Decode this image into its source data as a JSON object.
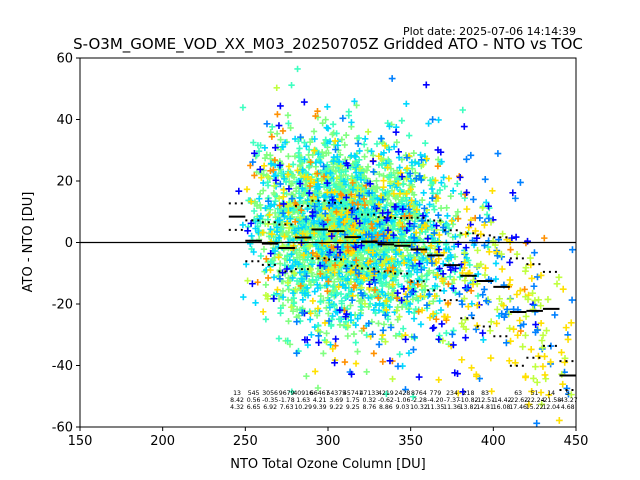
{
  "plot_date": "Plot date: 2025-07-06 14:14:39",
  "chart_data": {
    "type": "scatter",
    "title": "S-O3M_GOME_VOD_XX_M03_20250705Z Gridded ATO - NTO vs TOC",
    "xlabel": "NTO Total Ozone Column [DU]",
    "ylabel": "ATO - NTO [DU]",
    "xlim": [
      150,
      450
    ],
    "ylim": [
      -60,
      60
    ],
    "xticks": [
      150,
      200,
      250,
      300,
      350,
      400,
      450
    ],
    "yticks": [
      -60,
      -40,
      -20,
      0,
      20,
      40,
      60
    ],
    "zero_line": 0,
    "marker": "+",
    "colormap": "jet",
    "colors": [
      "#0000ff",
      "#0080ff",
      "#00d8ff",
      "#3dffc0",
      "#80ff80",
      "#c0ff40",
      "#ffe000",
      "#ff9000"
    ],
    "bin_width": 10,
    "bins": [
      {
        "x": 245,
        "count": "13",
        "mean": "8.42",
        "std": "4.32"
      },
      {
        "x": 255,
        "count": "545",
        "mean": "0.56",
        "std": "6.65"
      },
      {
        "x": 265,
        "count": "3056",
        "mean": "-0.35",
        "std": "6.92"
      },
      {
        "x": 275,
        "count": "9679",
        "mean": "-1.78",
        "std": "7.63"
      },
      {
        "x": 285,
        "count": "40916",
        "mean": "1.63",
        "std": "10.29"
      },
      {
        "x": 295,
        "count": "66467",
        "mean": "4.21",
        "std": "9.39"
      },
      {
        "x": 305,
        "count": "54375",
        "mean": "3.69",
        "std": "9.22"
      },
      {
        "x": 315,
        "count": "45741",
        "mean": "1.75",
        "std": "9.25"
      },
      {
        "x": 325,
        "count": "47133",
        "mean": "0.32",
        "std": "8.76"
      },
      {
        "x": 335,
        "count": "4219",
        "mean": "-0.62",
        "std": "8.86"
      },
      {
        "x": 345,
        "count": "2428",
        "mean": "-1.06",
        "std": "9.03"
      },
      {
        "x": 355,
        "count": "8764",
        "mean": "-2.28",
        "std": "10.32"
      },
      {
        "x": 365,
        "count": "779",
        "mean": "-4.20",
        "std": "11.35"
      },
      {
        "x": 375,
        "count": "234",
        "mean": "-7.37",
        "std": "11.36"
      },
      {
        "x": 385,
        "count": "218",
        "mean": "-10.82",
        "std": "13.82"
      },
      {
        "x": 395,
        "count": "83",
        "mean": "-12.51",
        "std": "14.81"
      },
      {
        "x": 405,
        "count": "",
        "mean": "-14.42",
        "std": "16.08"
      },
      {
        "x": 415,
        "count": "63",
        "mean": "-22.62",
        "std": "17.46"
      },
      {
        "x": 425,
        "count": "51",
        "mean": "-22.24",
        "std": "15.22"
      },
      {
        "x": 435,
        "count": "14",
        "mean": "-21.58",
        "std": "12.04"
      },
      {
        "x": 445,
        "count": "5",
        "mean": "-43.27",
        "std": "4.68"
      }
    ]
  }
}
